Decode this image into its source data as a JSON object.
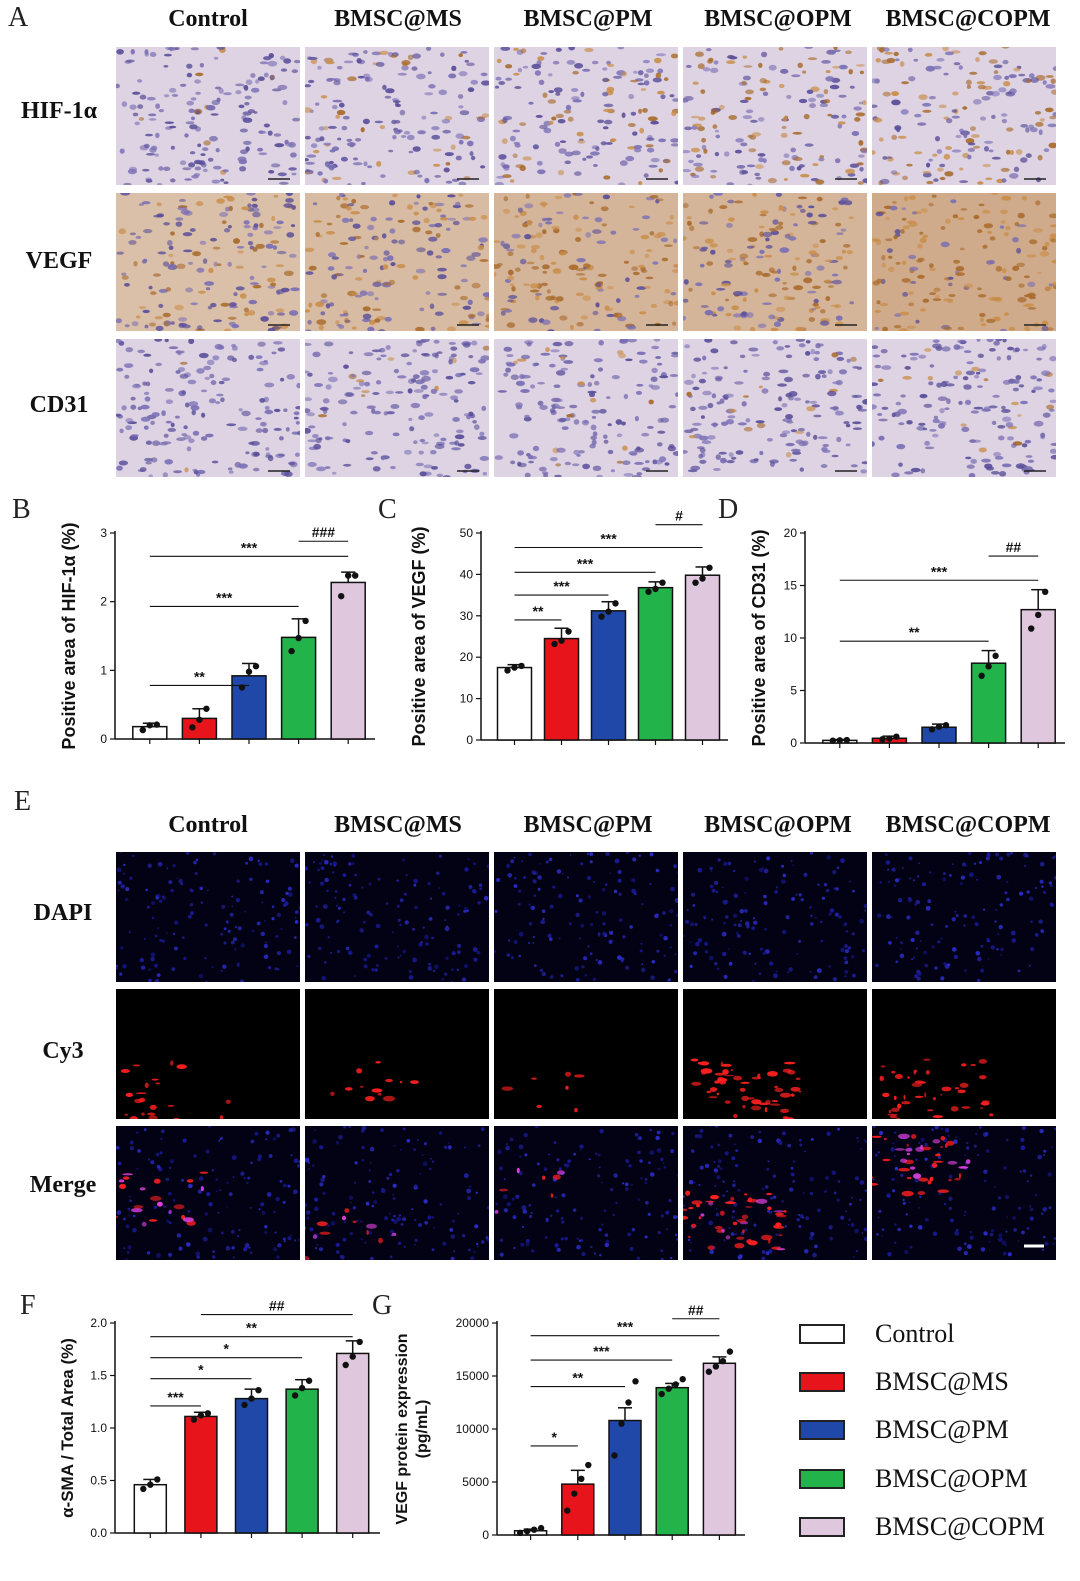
{
  "groups": [
    "Control",
    "BMSC@MS",
    "BMSC@PM",
    "BMSC@OPM",
    "BMSC@COPM"
  ],
  "colors": {
    "Control": "#ffffff",
    "BMSC@MS": "#e8141b",
    "BMSC@PM": "#1f48a8",
    "BMSC@OPM": "#22b34a",
    "BMSC@COPM": "#dfc7de"
  },
  "panelA": {
    "letter": "A",
    "headers": [
      "Control",
      "BMSC@MS",
      "BMSC@PM",
      "BMSC@OPM",
      "BMSC@COPM"
    ],
    "rows": [
      "HIF-1α",
      "VEGF",
      "CD31"
    ]
  },
  "panelE": {
    "letter": "E",
    "headers": [
      "Control",
      "BMSC@MS",
      "BMSC@PM",
      "BMSC@OPM",
      "BMSC@COPM"
    ],
    "rows": [
      "DAPI",
      "Cy3",
      "Merge"
    ]
  },
  "chart_data": [
    {
      "id": "B",
      "type": "bar",
      "letter": "B",
      "ylabel": "Positive area of HIF-1α (%)",
      "categories": [
        "Control",
        "BMSC@MS",
        "BMSC@PM",
        "BMSC@OPM",
        "BMSC@COPM"
      ],
      "values": [
        0.18,
        0.3,
        0.92,
        1.48,
        2.28
      ],
      "errors": [
        0.05,
        0.14,
        0.18,
        0.27,
        0.15
      ],
      "points": [
        [
          0.13,
          0.2,
          0.21
        ],
        [
          0.17,
          0.28,
          0.44
        ],
        [
          0.75,
          0.98,
          1.06
        ],
        [
          1.28,
          1.47,
          1.72
        ],
        [
          2.08,
          2.38,
          2.38
        ]
      ],
      "ylim": [
        0,
        3
      ],
      "yticks": [
        0,
        1,
        2,
        3
      ],
      "annotations": [
        {
          "text": "**",
          "from": 0,
          "to": 2,
          "y": 0.78
        },
        {
          "text": "***",
          "from": 0,
          "to": 3,
          "y": 1.93
        },
        {
          "text": "***",
          "from": 0,
          "to": 4,
          "y": 2.66
        },
        {
          "text": "###",
          "from": 3,
          "to": 4,
          "y": 2.88
        }
      ]
    },
    {
      "id": "C",
      "type": "bar",
      "letter": "C",
      "ylabel": "Positive area of  VEGF (%)",
      "categories": [
        "Control",
        "BMSC@MS",
        "BMSC@PM",
        "BMSC@OPM",
        "BMSC@COPM"
      ],
      "values": [
        17.5,
        24.5,
        31.2,
        36.8,
        39.8
      ],
      "errors": [
        0.7,
        2.5,
        2.2,
        1.4,
        2.0
      ],
      "points": [
        [
          16.8,
          17.5,
          17.9
        ],
        [
          23.2,
          24,
          26.2
        ],
        [
          29.8,
          31,
          33
        ],
        [
          35.8,
          36.5,
          38
        ],
        [
          38,
          39,
          41.6
        ]
      ],
      "ylim": [
        0,
        50
      ],
      "yticks": [
        0,
        10,
        20,
        30,
        40,
        50
      ],
      "annotations": [
        {
          "text": "**",
          "from": 0,
          "to": 1,
          "y": 29
        },
        {
          "text": "***",
          "from": 0,
          "to": 2,
          "y": 35
        },
        {
          "text": "***",
          "from": 0,
          "to": 3,
          "y": 40.5
        },
        {
          "text": "***",
          "from": 0,
          "to": 4,
          "y": 46.5
        },
        {
          "text": "#",
          "from": 3,
          "to": 4,
          "y": 52
        }
      ]
    },
    {
      "id": "D",
      "type": "bar",
      "letter": "D",
      "ylabel": "Positive area of CD31 (%)",
      "categories": [
        "Control",
        "BMSC@MS",
        "BMSC@PM",
        "BMSC@OPM",
        "BMSC@COPM"
      ],
      "values": [
        0.25,
        0.45,
        1.5,
        7.6,
        12.7
      ],
      "errors": [
        0.08,
        0.2,
        0.3,
        1.2,
        1.9
      ],
      "points": [
        [
          0.22,
          0.25,
          0.28
        ],
        [
          0.35,
          0.42,
          0.6
        ],
        [
          1.3,
          1.55,
          1.7
        ],
        [
          6.4,
          7.3,
          8.3
        ],
        [
          10.9,
          12.2,
          14.4
        ]
      ],
      "ylim": [
        0,
        20
      ],
      "yticks": [
        0,
        5,
        10,
        15,
        20
      ],
      "annotations": [
        {
          "text": "**",
          "from": 0,
          "to": 3,
          "y": 9.7
        },
        {
          "text": "***",
          "from": 0,
          "to": 4,
          "y": 15.5
        },
        {
          "text": "##",
          "from": 3,
          "to": 4,
          "y": 17.8
        }
      ]
    },
    {
      "id": "F",
      "type": "bar",
      "letter": "F",
      "ylabel": "α-SMA / Total Area (%)",
      "categories": [
        "Control",
        "BMSC@MS",
        "BMSC@PM",
        "BMSC@OPM",
        "BMSC@COPM"
      ],
      "values": [
        0.46,
        1.11,
        1.28,
        1.37,
        1.71
      ],
      "errors": [
        0.05,
        0.04,
        0.09,
        0.09,
        0.12
      ],
      "points": [
        [
          0.42,
          0.46,
          0.51
        ],
        [
          1.08,
          1.12,
          1.14
        ],
        [
          1.22,
          1.28,
          1.36
        ],
        [
          1.31,
          1.38,
          1.45
        ],
        [
          1.6,
          1.68,
          1.82
        ]
      ],
      "ylim": [
        0,
        2.0
      ],
      "yticks": [
        0.0,
        0.5,
        1.0,
        1.5,
        2.0
      ],
      "ytick_labels": [
        "0.0",
        "0.5",
        "1.0",
        "1.5",
        "2.0"
      ],
      "annotations": [
        {
          "text": "***",
          "from": 0,
          "to": 1,
          "y": 1.21
        },
        {
          "text": "*",
          "from": 0,
          "to": 2,
          "y": 1.47
        },
        {
          "text": "*",
          "from": 0,
          "to": 3,
          "y": 1.67
        },
        {
          "text": "**",
          "from": 0,
          "to": 4,
          "y": 1.87
        },
        {
          "text": "##",
          "from": 1,
          "to": 4,
          "y": 2.08
        }
      ]
    },
    {
      "id": "G",
      "type": "bar",
      "letter": "G",
      "ylabel": "VEGF protein expression (pg/mL)",
      "ylabel_lines": [
        "VEGF protein expression",
        "(pg/mL)"
      ],
      "categories": [
        "Control",
        "BMSC@MS",
        "BMSC@PM",
        "BMSC@OPM",
        "BMSC@COPM"
      ],
      "values": [
        400,
        4800,
        10800,
        13900,
        16200
      ],
      "errors": [
        150,
        1300,
        1200,
        400,
        600
      ],
      "points": [
        [
          200,
          350,
          500,
          650
        ],
        [
          2300,
          3900,
          5300,
          6600
        ],
        [
          7500,
          10500,
          12500,
          14500
        ],
        [
          13300,
          13800,
          14200,
          14700
        ],
        [
          15400,
          15900,
          16400,
          17300
        ]
      ],
      "ylim": [
        0,
        20000
      ],
      "yticks": [
        0,
        5000,
        10000,
        15000,
        20000
      ],
      "annotations": [
        {
          "text": "*",
          "from": 0,
          "to": 1,
          "y": 8400
        },
        {
          "text": "**",
          "from": 0,
          "to": 2,
          "y": 14000
        },
        {
          "text": "***",
          "from": 0,
          "to": 3,
          "y": 16500
        },
        {
          "text": "***",
          "from": 0,
          "to": 4,
          "y": 18800
        },
        {
          "text": "##",
          "from": 3,
          "to": 4,
          "y": 20400
        }
      ]
    }
  ],
  "legend": {
    "items": [
      {
        "label": "Control",
        "color": "#ffffff"
      },
      {
        "label": "BMSC@MS",
        "color": "#e8141b"
      },
      {
        "label": "BMSC@PM",
        "color": "#1f48a8"
      },
      {
        "label": "BMSC@OPM",
        "color": "#22b34a"
      },
      {
        "label": "BMSC@COPM",
        "color": "#dfc7de"
      }
    ]
  }
}
